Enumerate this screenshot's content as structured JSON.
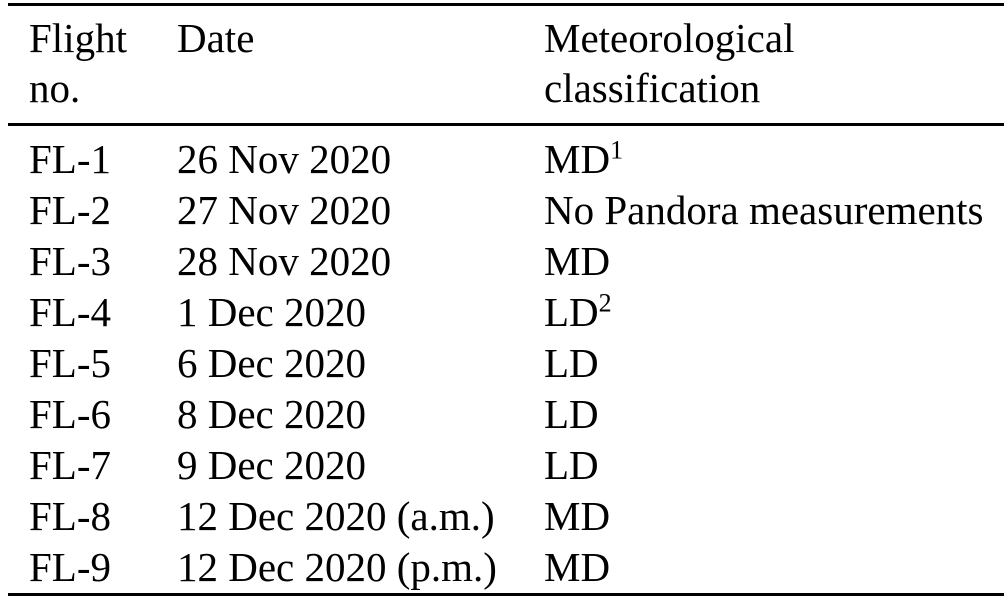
{
  "table": {
    "text_color": "#000000",
    "rule_color": "#000000",
    "columns": [
      {
        "line1": "Flight",
        "line2": "no."
      },
      {
        "line1": "Date",
        "line2": ""
      },
      {
        "line1": "Meteorological",
        "line2": "classification"
      }
    ],
    "rows": [
      {
        "flight_no": "FL-1",
        "date": "26 Nov 2020",
        "classification": "MD",
        "classification_sup": "1"
      },
      {
        "flight_no": "FL-2",
        "date": "27 Nov 2020",
        "classification": "No Pandora measurements",
        "classification_sup": ""
      },
      {
        "flight_no": "FL-3",
        "date": "28 Nov 2020",
        "classification": "MD",
        "classification_sup": ""
      },
      {
        "flight_no": "FL-4",
        "date": "1 Dec 2020",
        "classification": "LD",
        "classification_sup": "2"
      },
      {
        "flight_no": "FL-5",
        "date": "6 Dec 2020",
        "classification": "LD",
        "classification_sup": ""
      },
      {
        "flight_no": "FL-6",
        "date": "8 Dec 2020",
        "classification": "LD",
        "classification_sup": ""
      },
      {
        "flight_no": "FL-7",
        "date": "9 Dec 2020",
        "classification": "LD",
        "classification_sup": ""
      },
      {
        "flight_no": "FL-8",
        "date": "12 Dec 2020 (a.m.)",
        "classification": "MD",
        "classification_sup": ""
      },
      {
        "flight_no": "FL-9",
        "date": "12 Dec 2020 (p.m.)",
        "classification": "MD",
        "classification_sup": ""
      }
    ]
  }
}
